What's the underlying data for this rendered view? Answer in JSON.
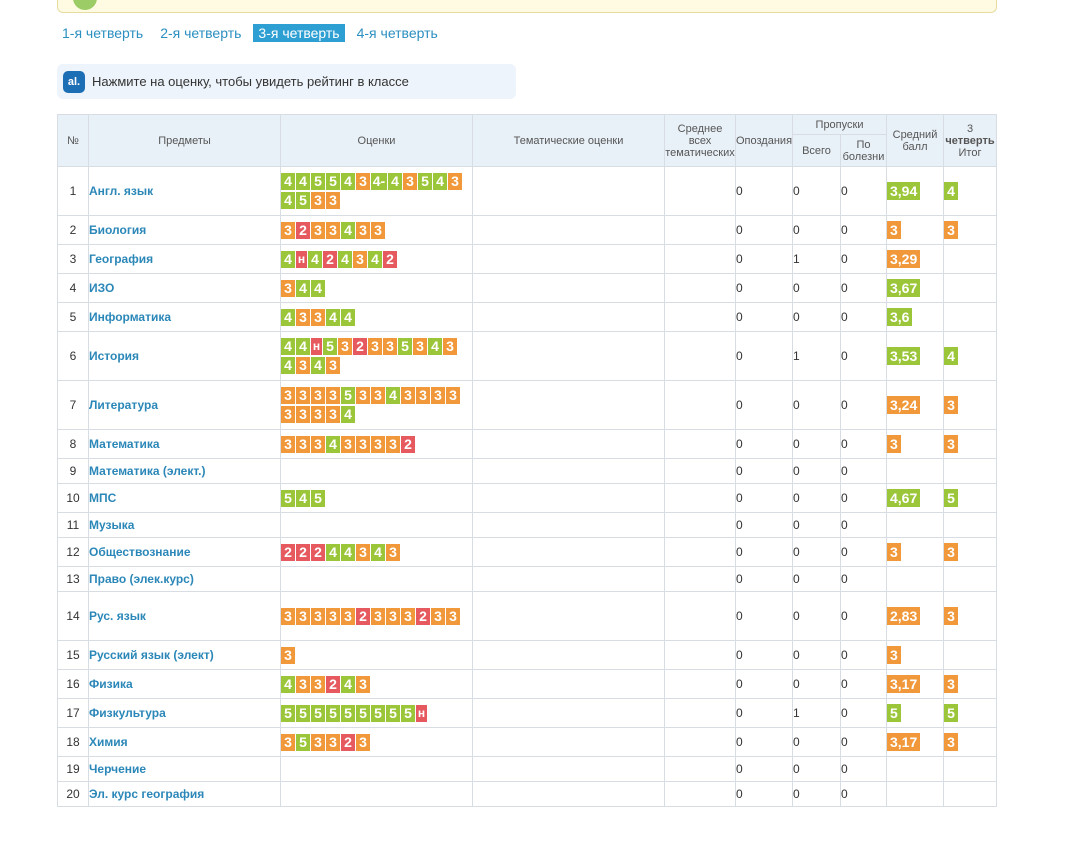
{
  "quarters": [
    "1-я четверть",
    "2-я четверть",
    "3-я четверть",
    "4-я четверть"
  ],
  "active_quarter": 2,
  "hint": {
    "logo": "al.",
    "text": "Нажмите на оценку, чтобы увидеть рейтинг в классе"
  },
  "table": {
    "headers": {
      "num": "№",
      "subject": "Предметы",
      "marks": "Оценки",
      "thematic": "Тематические оценки",
      "avg_thematic": "Среднее всех тематических",
      "late": "Опоздания",
      "absences": "Пропуски",
      "absences_total": "Всего",
      "absences_sick": "По болезни",
      "avg": "Средний балл",
      "final_quarter": "3",
      "final_word": "четверть",
      "final_itog": "Итог"
    },
    "rows": [
      {
        "num": "1",
        "subject": "Англ. язык",
        "marks": [
          "4",
          "4",
          "5",
          "5",
          "4",
          "3",
          "4-",
          "4",
          "3",
          "5",
          "4",
          "3",
          "4",
          "5",
          "3",
          "3"
        ],
        "late": "0",
        "abs_total": "0",
        "abs_sick": "0",
        "avg": "3,94",
        "avg_color": "#9cc63a",
        "final": "4",
        "final_color": "#9cc63a"
      },
      {
        "num": "2",
        "subject": "Биология",
        "marks": [
          "3",
          "2",
          "3",
          "3",
          "4",
          "3",
          "3"
        ],
        "late": "0",
        "abs_total": "0",
        "abs_sick": "0",
        "avg": "3",
        "avg_color": "#f0983a",
        "final": "3",
        "final_color": "#f0983a"
      },
      {
        "num": "3",
        "subject": "География",
        "marks": [
          "4",
          "н",
          "4",
          "2",
          "4",
          "3",
          "4",
          "2"
        ],
        "late": "0",
        "abs_total": "1",
        "abs_sick": "0",
        "avg": "3,29",
        "avg_color": "#f0983a",
        "final": "",
        "final_color": ""
      },
      {
        "num": "4",
        "subject": "ИЗО",
        "marks": [
          "3",
          "4",
          "4"
        ],
        "late": "0",
        "abs_total": "0",
        "abs_sick": "0",
        "avg": "3,67",
        "avg_color": "#9cc63a",
        "final": "",
        "final_color": ""
      },
      {
        "num": "5",
        "subject": "Информатика",
        "marks": [
          "4",
          "3",
          "3",
          "4",
          "4"
        ],
        "late": "0",
        "abs_total": "0",
        "abs_sick": "0",
        "avg": "3,6",
        "avg_color": "#9cc63a",
        "final": "",
        "final_color": ""
      },
      {
        "num": "6",
        "subject": "История",
        "marks": [
          "4",
          "4",
          "н",
          "5",
          "3",
          "2",
          "3",
          "3",
          "5",
          "3",
          "4",
          "3",
          "4",
          "3",
          "4",
          "3"
        ],
        "late": "0",
        "abs_total": "1",
        "abs_sick": "0",
        "avg": "3,53",
        "avg_color": "#9cc63a",
        "final": "4",
        "final_color": "#9cc63a"
      },
      {
        "num": "7",
        "subject": "Литература",
        "marks": [
          "3",
          "3",
          "3",
          "3",
          "5",
          "3",
          "3",
          "4",
          "3",
          "3",
          "3",
          "3",
          "3",
          "3",
          "3",
          "3",
          "4"
        ],
        "late": "0",
        "abs_total": "0",
        "abs_sick": "0",
        "avg": "3,24",
        "avg_color": "#f0983a",
        "final": "3",
        "final_color": "#f0983a"
      },
      {
        "num": "8",
        "subject": "Математика",
        "marks": [
          "3",
          "3",
          "3",
          "4",
          "3",
          "3",
          "3",
          "3",
          "2"
        ],
        "late": "0",
        "abs_total": "0",
        "abs_sick": "0",
        "avg": "3",
        "avg_color": "#f0983a",
        "final": "3",
        "final_color": "#f0983a"
      },
      {
        "num": "9",
        "subject": "Математика (элект.)",
        "marks": [],
        "late": "0",
        "abs_total": "0",
        "abs_sick": "0",
        "avg": "",
        "avg_color": "",
        "final": "",
        "final_color": ""
      },
      {
        "num": "10",
        "subject": "МПС",
        "marks": [
          "5",
          "4",
          "5"
        ],
        "late": "0",
        "abs_total": "0",
        "abs_sick": "0",
        "avg": "4,67",
        "avg_color": "#9cc63a",
        "final": "5",
        "final_color": "#9cc63a"
      },
      {
        "num": "11",
        "subject": "Музыка",
        "marks": [],
        "late": "0",
        "abs_total": "0",
        "abs_sick": "0",
        "avg": "",
        "avg_color": "",
        "final": "",
        "final_color": ""
      },
      {
        "num": "12",
        "subject": "Обществознание",
        "marks": [
          "2",
          "2",
          "2",
          "4",
          "4",
          "3",
          "4",
          "3"
        ],
        "late": "0",
        "abs_total": "0",
        "abs_sick": "0",
        "avg": "3",
        "avg_color": "#f0983a",
        "final": "3",
        "final_color": "#f0983a"
      },
      {
        "num": "13",
        "subject": "Право (элек.курс)",
        "marks": [],
        "late": "0",
        "abs_total": "0",
        "abs_sick": "0",
        "avg": "",
        "avg_color": "",
        "final": "",
        "final_color": ""
      },
      {
        "num": "14",
        "subject": "Рус. язык",
        "marks": [
          "3",
          "3",
          "3",
          "3",
          "3",
          "2",
          "3",
          "3",
          "3",
          "2",
          "3",
          "3"
        ],
        "late": "0",
        "abs_total": "0",
        "abs_sick": "0",
        "avg": "2,83",
        "avg_color": "#f0983a",
        "final": "3",
        "final_color": "#f0983a"
      },
      {
        "num": "15",
        "subject": "Русский язык (элект)",
        "marks": [
          "3"
        ],
        "late": "0",
        "abs_total": "0",
        "abs_sick": "0",
        "avg": "3",
        "avg_color": "#f0983a",
        "final": "",
        "final_color": ""
      },
      {
        "num": "16",
        "subject": "Физика",
        "marks": [
          "4",
          "3",
          "3",
          "2",
          "4",
          "3"
        ],
        "late": "0",
        "abs_total": "0",
        "abs_sick": "0",
        "avg": "3,17",
        "avg_color": "#f0983a",
        "final": "3",
        "final_color": "#f0983a"
      },
      {
        "num": "17",
        "subject": "Физкультура",
        "marks": [
          "5",
          "5",
          "5",
          "5",
          "5",
          "5",
          "5",
          "5",
          "5",
          "н"
        ],
        "late": "0",
        "abs_total": "1",
        "abs_sick": "0",
        "avg": "5",
        "avg_color": "#9cc63a",
        "final": "5",
        "final_color": "#9cc63a"
      },
      {
        "num": "18",
        "subject": "Химия",
        "marks": [
          "3",
          "5",
          "3",
          "3",
          "2",
          "3"
        ],
        "late": "0",
        "abs_total": "0",
        "abs_sick": "0",
        "avg": "3,17",
        "avg_color": "#f0983a",
        "final": "3",
        "final_color": "#f0983a"
      },
      {
        "num": "19",
        "subject": "Черчение",
        "marks": [],
        "late": "0",
        "abs_total": "0",
        "abs_sick": "0",
        "avg": "",
        "avg_color": "",
        "final": "",
        "final_color": ""
      },
      {
        "num": "20",
        "subject": "Эл. курс география",
        "marks": [],
        "late": "0",
        "abs_total": "0",
        "abs_sick": "0",
        "avg": "",
        "avg_color": "",
        "final": "",
        "final_color": ""
      }
    ]
  }
}
